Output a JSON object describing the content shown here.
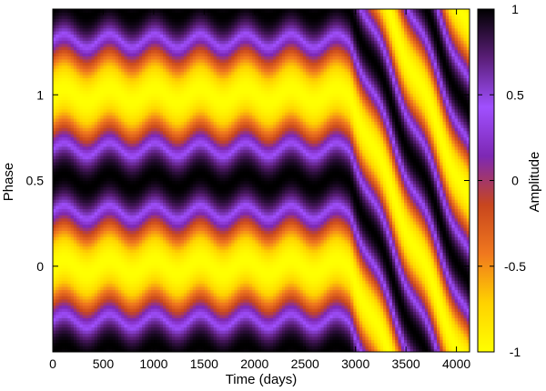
{
  "chart_data": {
    "type": "heatmap",
    "title": "",
    "xlabel": "Time (days)",
    "ylabel": "Phase",
    "colorbar_label": "Amplitude",
    "xlim": [
      0,
      4130
    ],
    "ylim": [
      -0.5,
      1.5
    ],
    "zlim": [
      -1,
      1
    ],
    "x_ticks": [
      0,
      500,
      1000,
      1500,
      2000,
      2500,
      3000,
      3500,
      4000
    ],
    "x_tick_labels": [
      "0",
      "500",
      "1000",
      "1500",
      "2000",
      "2500",
      "3000",
      "3500",
      "4000"
    ],
    "y_ticks": [
      0,
      0.5,
      1
    ],
    "y_tick_labels": [
      "0",
      "0.5",
      "1"
    ],
    "colorbar_ticks": [
      1,
      0.5,
      0,
      -0.5,
      -1
    ],
    "colorbar_tick_labels": [
      "1",
      "0.5",
      "0",
      "-0.5",
      "-1"
    ],
    "colormap": [
      "#ffff00",
      "#ffd200",
      "#f0781e",
      "#c8461e",
      "#7d28b4",
      "#a050ff",
      "#5a1e78",
      "#000000"
    ],
    "model": {
      "description_of_pattern": "amplitude = -cos(2*pi*(phase - shift(t))) with maxima of negative amplitude (yellow) near phase 0 and 1, positive (black) near phase 0.5",
      "wobble_period_days": 450,
      "wobble_amplitude_phase": 0.04,
      "drift_start_day": 2950,
      "drift_rate_phase_per_day": -0.00138
    }
  }
}
